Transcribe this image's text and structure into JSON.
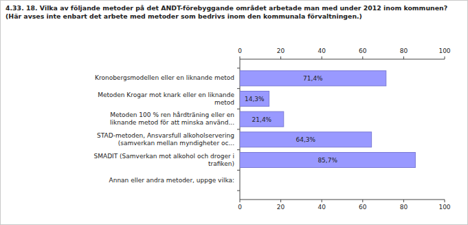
{
  "chart_data": {
    "type": "bar",
    "orientation": "horizontal",
    "title": "4.33. 18. Vilka av följande metoder på det ANDT-förebyggande området arbetade man med under 2012 inom kommunen? (Här avses inte enbart det arbete med metoder som bedrivs inom den kommunala förvaltningen.)",
    "categories": [
      "Kronobergsmodellen eller en liknande metod",
      "Metoden Krogar mot knark eller en liknande metod",
      "Metoden 100 % ren hårdträning eller en liknande metod för att minska använd...",
      "STAD-metoden, Ansvarsfull alkoholservering (samverkan mellan myndigheter oc...",
      "SMADIT (Samverkan mot alkohol och droger i trafiken)",
      "Annan eller andra metoder, uppge vilka:"
    ],
    "values": [
      71.4,
      14.3,
      21.4,
      64.3,
      85.7,
      0
    ],
    "value_labels": [
      "71,4%",
      "14,3%",
      "21,4%",
      "64,3%",
      "85,7%",
      null
    ],
    "data_labels": true,
    "color": "#9999ff",
    "xlim": [
      0,
      100
    ],
    "xticks": [
      0,
      20,
      40,
      60,
      80,
      100
    ],
    "grid": false
  }
}
